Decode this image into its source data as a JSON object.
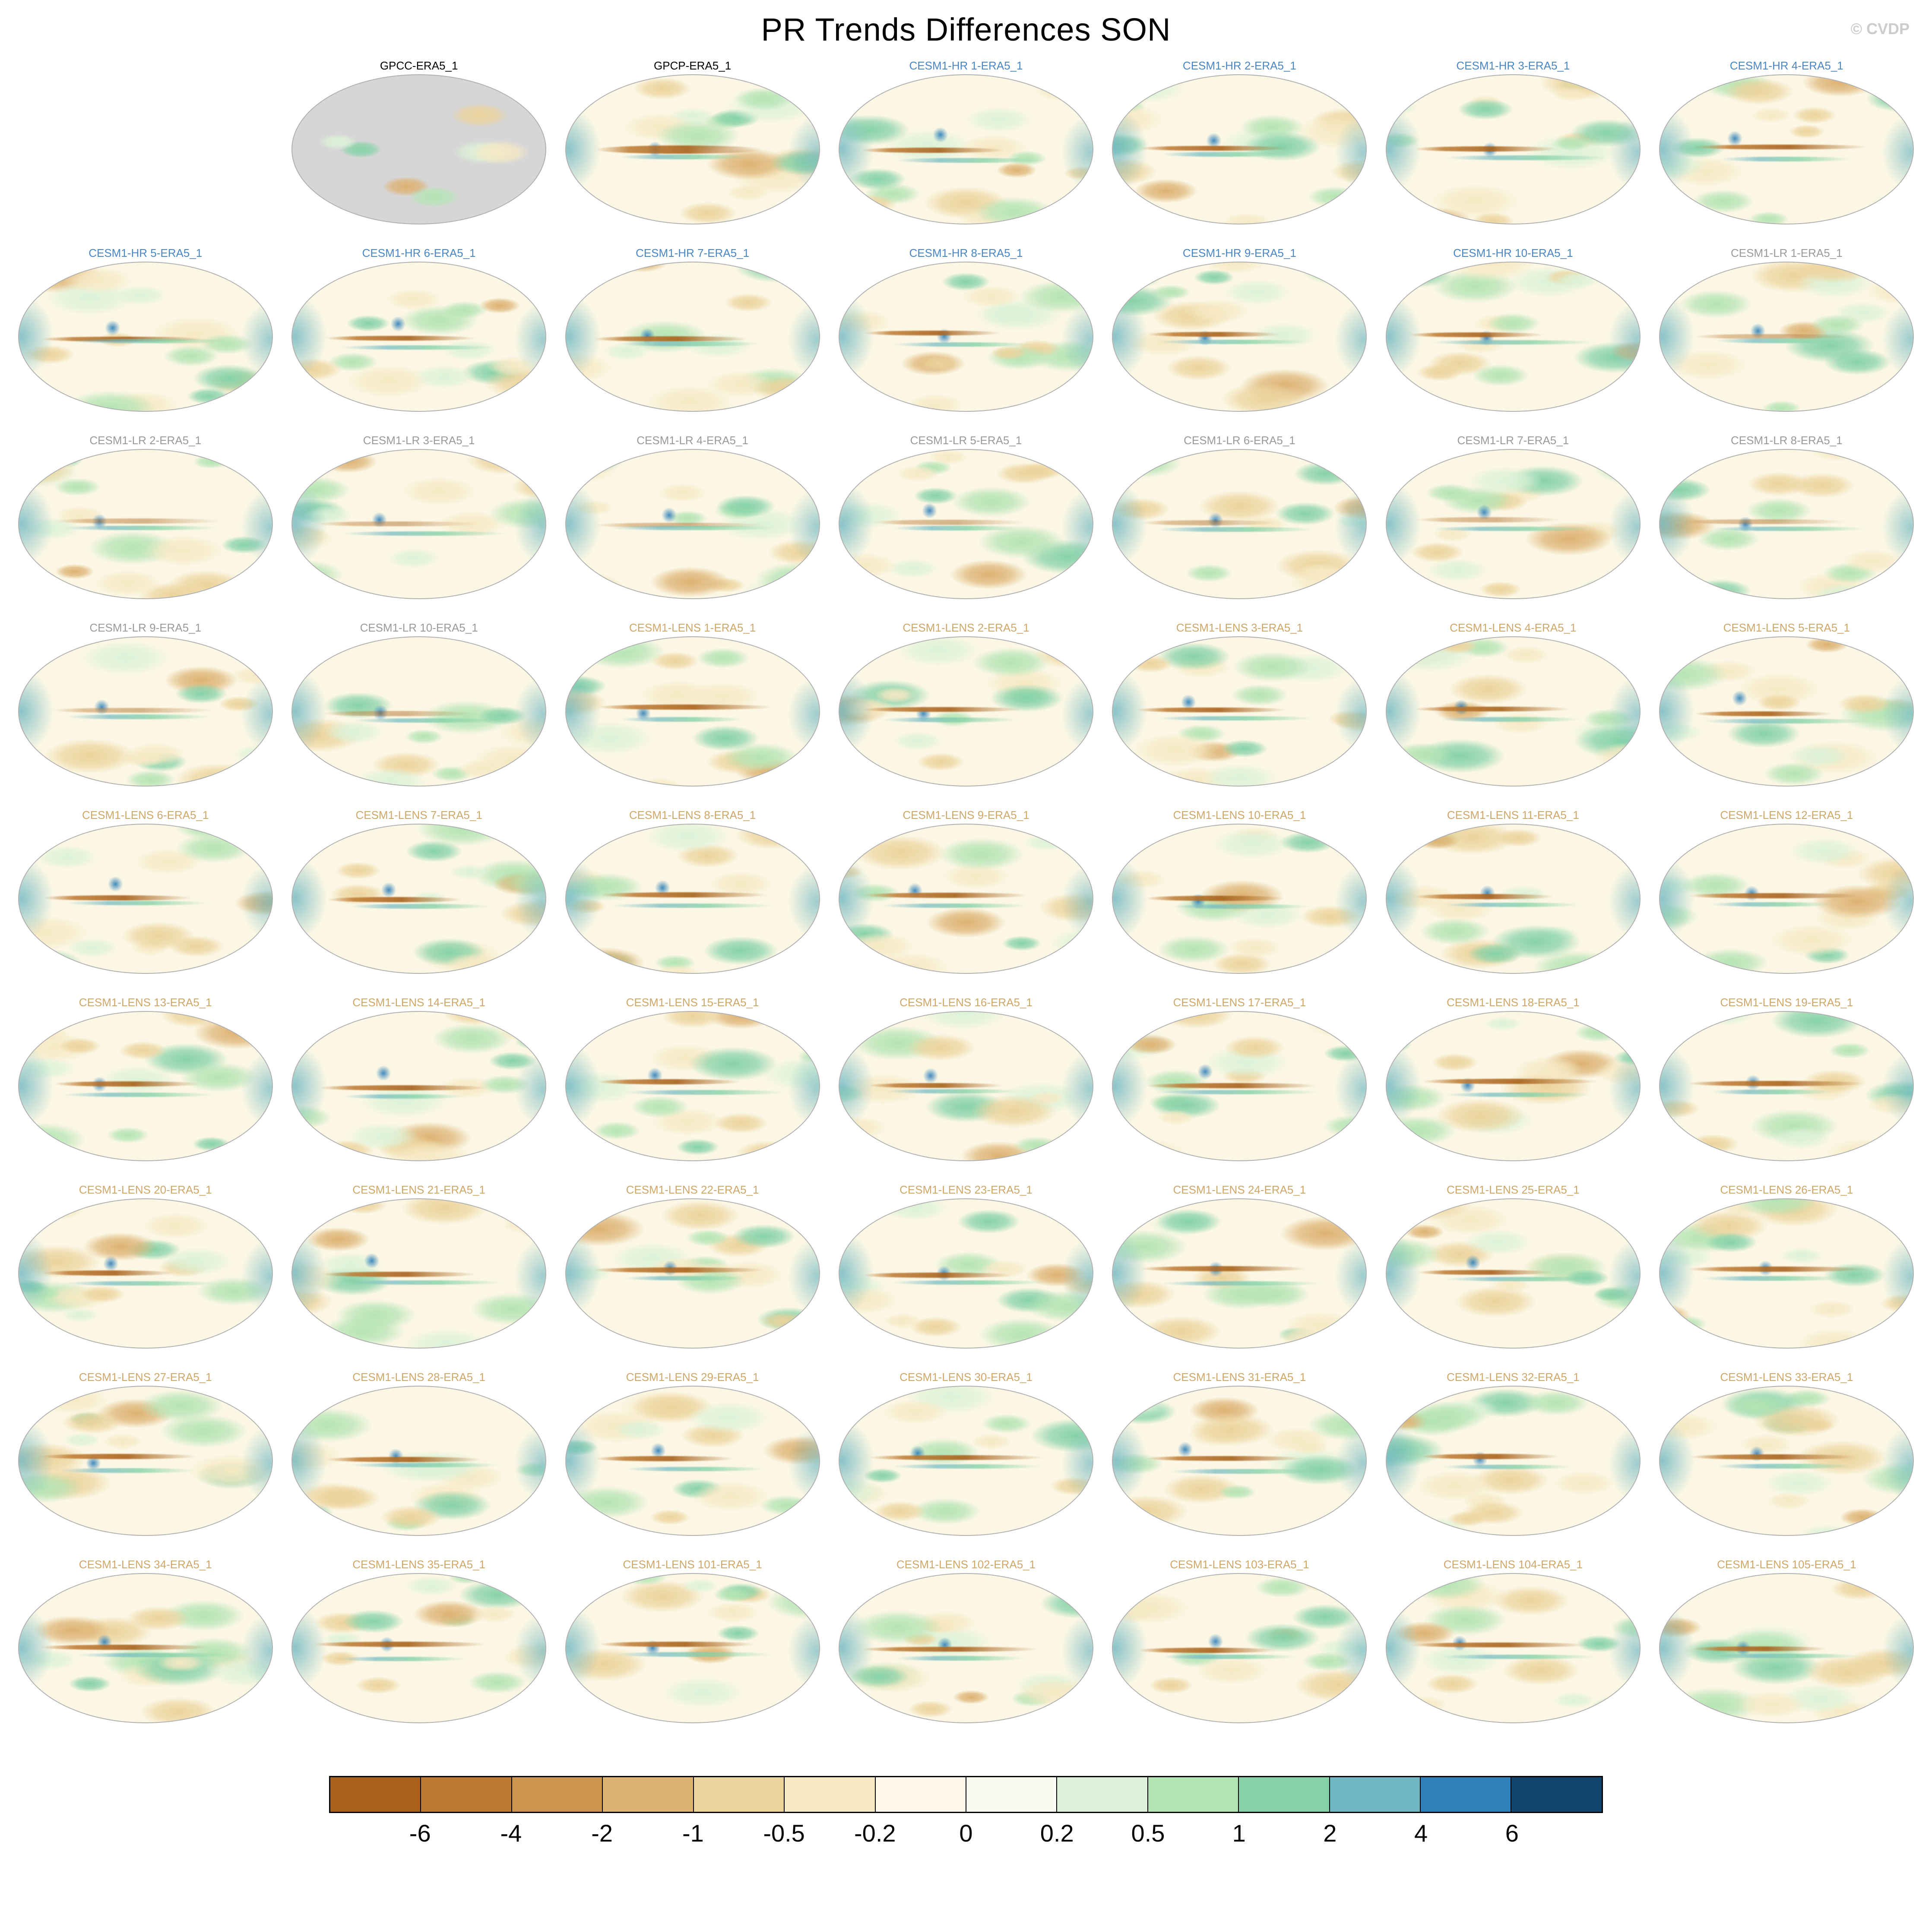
{
  "header": {
    "title": "PR Trends Differences SON",
    "watermark": "© CVDP"
  },
  "label_colors": {
    "obs": "#000000",
    "hr": "#4a86c4",
    "lr": "#9a9a9a",
    "lens": "#cfa768"
  },
  "rows": [
    {
      "leading_empty": 1,
      "panels": [
        {
          "label": "GPCC-ERA5_1",
          "group": "obs"
        },
        {
          "label": "GPCP-ERA5_1",
          "group": "obs"
        },
        {
          "label": "CESM1-HR 1-ERA5_1",
          "group": "hr"
        },
        {
          "label": "CESM1-HR 2-ERA5_1",
          "group": "hr"
        },
        {
          "label": "CESM1-HR 3-ERA5_1",
          "group": "hr"
        },
        {
          "label": "CESM1-HR 4-ERA5_1",
          "group": "hr"
        }
      ]
    },
    {
      "leading_empty": 0,
      "panels": [
        {
          "label": "CESM1-HR 5-ERA5_1",
          "group": "hr"
        },
        {
          "label": "CESM1-HR 6-ERA5_1",
          "group": "hr"
        },
        {
          "label": "CESM1-HR 7-ERA5_1",
          "group": "hr"
        },
        {
          "label": "CESM1-HR 8-ERA5_1",
          "group": "hr"
        },
        {
          "label": "CESM1-HR 9-ERA5_1",
          "group": "hr"
        },
        {
          "label": "CESM1-HR 10-ERA5_1",
          "group": "hr"
        },
        {
          "label": "CESM1-LR 1-ERA5_1",
          "group": "lr"
        }
      ]
    },
    {
      "leading_empty": 0,
      "panels": [
        {
          "label": "CESM1-LR 2-ERA5_1",
          "group": "lr"
        },
        {
          "label": "CESM1-LR 3-ERA5_1",
          "group": "lr"
        },
        {
          "label": "CESM1-LR 4-ERA5_1",
          "group": "lr"
        },
        {
          "label": "CESM1-LR 5-ERA5_1",
          "group": "lr"
        },
        {
          "label": "CESM1-LR 6-ERA5_1",
          "group": "lr"
        },
        {
          "label": "CESM1-LR 7-ERA5_1",
          "group": "lr"
        },
        {
          "label": "CESM1-LR 8-ERA5_1",
          "group": "lr"
        }
      ]
    },
    {
      "leading_empty": 0,
      "panels": [
        {
          "label": "CESM1-LR 9-ERA5_1",
          "group": "lr"
        },
        {
          "label": "CESM1-LR 10-ERA5_1",
          "group": "lr"
        },
        {
          "label": "CESM1-LENS 1-ERA5_1",
          "group": "lens"
        },
        {
          "label": "CESM1-LENS 2-ERA5_1",
          "group": "lens"
        },
        {
          "label": "CESM1-LENS 3-ERA5_1",
          "group": "lens"
        },
        {
          "label": "CESM1-LENS 4-ERA5_1",
          "group": "lens"
        },
        {
          "label": "CESM1-LENS 5-ERA5_1",
          "group": "lens"
        }
      ]
    },
    {
      "leading_empty": 0,
      "panels": [
        {
          "label": "CESM1-LENS 6-ERA5_1",
          "group": "lens"
        },
        {
          "label": "CESM1-LENS 7-ERA5_1",
          "group": "lens"
        },
        {
          "label": "CESM1-LENS 8-ERA5_1",
          "group": "lens"
        },
        {
          "label": "CESM1-LENS 9-ERA5_1",
          "group": "lens"
        },
        {
          "label": "CESM1-LENS 10-ERA5_1",
          "group": "lens"
        },
        {
          "label": "CESM1-LENS 11-ERA5_1",
          "group": "lens"
        },
        {
          "label": "CESM1-LENS 12-ERA5_1",
          "group": "lens"
        }
      ]
    },
    {
      "leading_empty": 0,
      "panels": [
        {
          "label": "CESM1-LENS 13-ERA5_1",
          "group": "lens"
        },
        {
          "label": "CESM1-LENS 14-ERA5_1",
          "group": "lens"
        },
        {
          "label": "CESM1-LENS 15-ERA5_1",
          "group": "lens"
        },
        {
          "label": "CESM1-LENS 16-ERA5_1",
          "group": "lens"
        },
        {
          "label": "CESM1-LENS 17-ERA5_1",
          "group": "lens"
        },
        {
          "label": "CESM1-LENS 18-ERA5_1",
          "group": "lens"
        },
        {
          "label": "CESM1-LENS 19-ERA5_1",
          "group": "lens"
        }
      ]
    },
    {
      "leading_empty": 0,
      "panels": [
        {
          "label": "CESM1-LENS 20-ERA5_1",
          "group": "lens"
        },
        {
          "label": "CESM1-LENS 21-ERA5_1",
          "group": "lens"
        },
        {
          "label": "CESM1-LENS 22-ERA5_1",
          "group": "lens"
        },
        {
          "label": "CESM1-LENS 23-ERA5_1",
          "group": "lens"
        },
        {
          "label": "CESM1-LENS 24-ERA5_1",
          "group": "lens"
        },
        {
          "label": "CESM1-LENS 25-ERA5_1",
          "group": "lens"
        },
        {
          "label": "CESM1-LENS 26-ERA5_1",
          "group": "lens"
        }
      ]
    },
    {
      "leading_empty": 0,
      "panels": [
        {
          "label": "CESM1-LENS 27-ERA5_1",
          "group": "lens"
        },
        {
          "label": "CESM1-LENS 28-ERA5_1",
          "group": "lens"
        },
        {
          "label": "CESM1-LENS 29-ERA5_1",
          "group": "lens"
        },
        {
          "label": "CESM1-LENS 30-ERA5_1",
          "group": "lens"
        },
        {
          "label": "CESM1-LENS 31-ERA5_1",
          "group": "lens"
        },
        {
          "label": "CESM1-LENS 32-ERA5_1",
          "group": "lens"
        },
        {
          "label": "CESM1-LENS 33-ERA5_1",
          "group": "lens"
        }
      ]
    },
    {
      "leading_empty": 0,
      "panels": [
        {
          "label": "CESM1-LENS 34-ERA5_1",
          "group": "lens"
        },
        {
          "label": "CESM1-LENS 35-ERA5_1",
          "group": "lens"
        },
        {
          "label": "CESM1-LENS 101-ERA5_1",
          "group": "lens"
        },
        {
          "label": "CESM1-LENS 102-ERA5_1",
          "group": "lens"
        },
        {
          "label": "CESM1-LENS 103-ERA5_1",
          "group": "lens"
        },
        {
          "label": "CESM1-LENS 104-ERA5_1",
          "group": "lens"
        },
        {
          "label": "CESM1-LENS 105-ERA5_1",
          "group": "lens"
        }
      ]
    }
  ],
  "colorbar": {
    "tick_labels": [
      "-6",
      "-4",
      "-2",
      "-1",
      "-0.5",
      "-0.2",
      "0",
      "0.2",
      "0.5",
      "1",
      "2",
      "4",
      "6"
    ],
    "colors": [
      "#a8611b",
      "#bd7a33",
      "#cf9450",
      "#ddb272",
      "#ecd39c",
      "#f6e9c4",
      "#fdf8e8",
      "#f7fbf2",
      "#ddf2d8",
      "#b4e4b4",
      "#86d2a8",
      "#6fb7c2",
      "#2f7fb8",
      "#12456e"
    ]
  },
  "chart_data": {
    "type": "heatmap",
    "title": "PR Trends Differences SON",
    "panel_grid": {
      "rows": 9,
      "cols": 7,
      "first_row_offset": 1
    },
    "panel_titles": [
      "GPCC-ERA5_1",
      "GPCP-ERA5_1",
      "CESM1-HR 1-ERA5_1",
      "CESM1-HR 2-ERA5_1",
      "CESM1-HR 3-ERA5_1",
      "CESM1-HR 4-ERA5_1",
      "CESM1-HR 5-ERA5_1",
      "CESM1-HR 6-ERA5_1",
      "CESM1-HR 7-ERA5_1",
      "CESM1-HR 8-ERA5_1",
      "CESM1-HR 9-ERA5_1",
      "CESM1-HR 10-ERA5_1",
      "CESM1-LR 1-ERA5_1",
      "CESM1-LR 2-ERA5_1",
      "CESM1-LR 3-ERA5_1",
      "CESM1-LR 4-ERA5_1",
      "CESM1-LR 5-ERA5_1",
      "CESM1-LR 6-ERA5_1",
      "CESM1-LR 7-ERA5_1",
      "CESM1-LR 8-ERA5_1",
      "CESM1-LR 9-ERA5_1",
      "CESM1-LR 10-ERA5_1",
      "CESM1-LENS 1-ERA5_1",
      "CESM1-LENS 2-ERA5_1",
      "CESM1-LENS 3-ERA5_1",
      "CESM1-LENS 4-ERA5_1",
      "CESM1-LENS 5-ERA5_1",
      "CESM1-LENS 6-ERA5_1",
      "CESM1-LENS 7-ERA5_1",
      "CESM1-LENS 8-ERA5_1",
      "CESM1-LENS 9-ERA5_1",
      "CESM1-LENS 10-ERA5_1",
      "CESM1-LENS 11-ERA5_1",
      "CESM1-LENS 12-ERA5_1",
      "CESM1-LENS 13-ERA5_1",
      "CESM1-LENS 14-ERA5_1",
      "CESM1-LENS 15-ERA5_1",
      "CESM1-LENS 16-ERA5_1",
      "CESM1-LENS 17-ERA5_1",
      "CESM1-LENS 18-ERA5_1",
      "CESM1-LENS 19-ERA5_1",
      "CESM1-LENS 20-ERA5_1",
      "CESM1-LENS 21-ERA5_1",
      "CESM1-LENS 22-ERA5_1",
      "CESM1-LENS 23-ERA5_1",
      "CESM1-LENS 24-ERA5_1",
      "CESM1-LENS 25-ERA5_1",
      "CESM1-LENS 26-ERA5_1",
      "CESM1-LENS 27-ERA5_1",
      "CESM1-LENS 28-ERA5_1",
      "CESM1-LENS 29-ERA5_1",
      "CESM1-LENS 30-ERA5_1",
      "CESM1-LENS 31-ERA5_1",
      "CESM1-LENS 32-ERA5_1",
      "CESM1-LENS 33-ERA5_1",
      "CESM1-LENS 34-ERA5_1",
      "CESM1-LENS 35-ERA5_1",
      "CESM1-LENS 101-ERA5_1",
      "CESM1-LENS 102-ERA5_1",
      "CESM1-LENS 103-ERA5_1",
      "CESM1-LENS 104-ERA5_1",
      "CESM1-LENS 105-ERA5_1"
    ],
    "colorbar_tick_labels": [
      "-6",
      "-4",
      "-2",
      "-1",
      "-0.5",
      "-0.2",
      "0",
      "0.2",
      "0.5",
      "1",
      "2",
      "4",
      "6"
    ],
    "colorbar_colors": [
      "#a8611b",
      "#bd7a33",
      "#cf9450",
      "#ddb272",
      "#ecd39c",
      "#f6e9c4",
      "#fdf8e8",
      "#f7fbf2",
      "#ddf2d8",
      "#b4e4b4",
      "#86d2a8",
      "#6fb7c2",
      "#2f7fb8",
      "#12456e"
    ],
    "legend_position": "bottom"
  }
}
